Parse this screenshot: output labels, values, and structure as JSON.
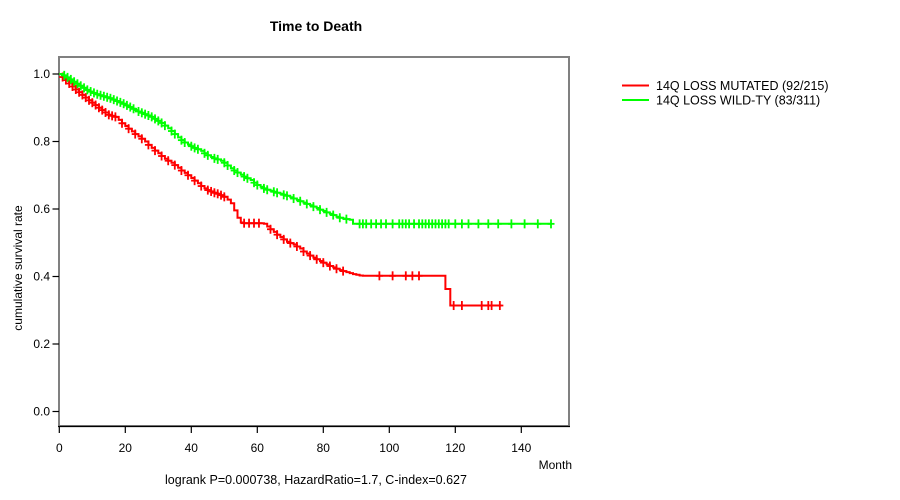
{
  "title": "Time to Death",
  "y_axis_label": "cumulative survival rate",
  "x_axis_label": "Month",
  "footer": "logrank P=0.000738, HazardRatio=1.7, C-index=0.627",
  "colors": {
    "background": "#ffffff",
    "box_border": "#808080",
    "axis": "#000000",
    "mutated": "#ff0000",
    "wildtype": "#00ff00"
  },
  "legend": {
    "items": [
      {
        "label": "14Q LOSS MUTATED (92/215)",
        "color": "#ff0000"
      },
      {
        "label": "14Q LOSS WILD-TY (83/311)",
        "color": "#00ff00"
      }
    ]
  },
  "chart_data": {
    "type": "line",
    "subtype": "kaplan-meier-step",
    "title": "Time to Death",
    "xlabel": "Month",
    "ylabel": "cumulative survival rate",
    "annotation": "logrank P=0.000738, HazardRatio=1.7, C-index=0.627",
    "logrank_p": 0.000738,
    "hazard_ratio": 1.7,
    "c_index": 0.627,
    "xlim": [
      0,
      155
    ],
    "ylim": [
      0.0,
      1.0
    ],
    "x_ticks": [
      0,
      20,
      40,
      60,
      80,
      100,
      120,
      140
    ],
    "y_ticks": [
      0.0,
      0.2,
      0.4,
      0.6,
      0.8,
      1.0
    ],
    "grid": false,
    "legend_position": "outside-top-right",
    "series": [
      {
        "name": "14Q LOSS MUTATED (92/215)",
        "events": 92,
        "n": 215,
        "color": "#ff0000",
        "points": [
          [
            0,
            1
          ],
          [
            1,
            0.991
          ],
          [
            2,
            0.982
          ],
          [
            3,
            0.972
          ],
          [
            4,
            0.963
          ],
          [
            5,
            0.954
          ],
          [
            6,
            0.946
          ],
          [
            7,
            0.938
          ],
          [
            8,
            0.93
          ],
          [
            9,
            0.922
          ],
          [
            10,
            0.915
          ],
          [
            11,
            0.908
          ],
          [
            12,
            0.9
          ],
          [
            13,
            0.893
          ],
          [
            14,
            0.886
          ],
          [
            15,
            0.879
          ],
          [
            16,
            0.876
          ],
          [
            17,
            0.873
          ],
          [
            18,
            0.864
          ],
          [
            19,
            0.854
          ],
          [
            20,
            0.846
          ],
          [
            21,
            0.838
          ],
          [
            22,
            0.83
          ],
          [
            23,
            0.822
          ],
          [
            24,
            0.815
          ],
          [
            25,
            0.808
          ],
          [
            26,
            0.8
          ],
          [
            27,
            0.79
          ],
          [
            28,
            0.781
          ],
          [
            29,
            0.773
          ],
          [
            30,
            0.765
          ],
          [
            31,
            0.757
          ],
          [
            32,
            0.749
          ],
          [
            33,
            0.743
          ],
          [
            34,
            0.737
          ],
          [
            35,
            0.73
          ],
          [
            36,
            0.722
          ],
          [
            37,
            0.714
          ],
          [
            38,
            0.707
          ],
          [
            39,
            0.7
          ],
          [
            40,
            0.692
          ],
          [
            41,
            0.684
          ],
          [
            42,
            0.676
          ],
          [
            43,
            0.668
          ],
          [
            44,
            0.661
          ],
          [
            45,
            0.656
          ],
          [
            46,
            0.652
          ],
          [
            47,
            0.648
          ],
          [
            48,
            0.645
          ],
          [
            49,
            0.641
          ],
          [
            50,
            0.636
          ],
          [
            51,
            0.628
          ],
          [
            52,
            0.617
          ],
          [
            53,
            0.596
          ],
          [
            54,
            0.574
          ],
          [
            55,
            0.56
          ],
          [
            56,
            0.558
          ],
          [
            62,
            0.556
          ],
          [
            63,
            0.548
          ],
          [
            64,
            0.54
          ],
          [
            65,
            0.532
          ],
          [
            66,
            0.524
          ],
          [
            67,
            0.517
          ],
          [
            68,
            0.51
          ],
          [
            69,
            0.503
          ],
          [
            70,
            0.499
          ],
          [
            71,
            0.495
          ],
          [
            72,
            0.489
          ],
          [
            73,
            0.483
          ],
          [
            74,
            0.474
          ],
          [
            75,
            0.468
          ],
          [
            76,
            0.462
          ],
          [
            77,
            0.456
          ],
          [
            78,
            0.451
          ],
          [
            79,
            0.446
          ],
          [
            80,
            0.441
          ],
          [
            81,
            0.436
          ],
          [
            82,
            0.431
          ],
          [
            83,
            0.427
          ],
          [
            84,
            0.423
          ],
          [
            85,
            0.419
          ],
          [
            86,
            0.416
          ],
          [
            87,
            0.413
          ],
          [
            88,
            0.41
          ],
          [
            89,
            0.407
          ],
          [
            90,
            0.405
          ],
          [
            91,
            0.403
          ],
          [
            92,
            0.402
          ],
          [
            116,
            0.402
          ],
          [
            117,
            0.363
          ],
          [
            118.5,
            0.314
          ],
          [
            134,
            0.314
          ]
        ],
        "censor_marks_months": [
          1,
          2,
          3,
          4,
          5,
          6,
          7,
          8,
          9,
          10,
          11,
          12,
          13,
          14,
          15,
          16,
          17,
          19,
          21,
          23,
          25,
          27,
          29,
          31,
          33,
          35,
          37,
          39,
          41,
          43,
          45,
          46,
          47,
          48,
          49,
          50,
          56,
          57.5,
          59,
          60.5,
          64,
          66,
          68,
          70,
          72,
          74,
          76,
          78,
          80,
          82,
          84,
          86,
          97,
          101,
          105,
          107,
          109,
          119.5,
          122,
          128,
          130,
          131,
          133.5
        ]
      },
      {
        "name": "14Q LOSS WILD-TY (83/311)",
        "events": 83,
        "n": 311,
        "color": "#00ff00",
        "points": [
          [
            0,
            1
          ],
          [
            1,
            0.996
          ],
          [
            2,
            0.99
          ],
          [
            3,
            0.984
          ],
          [
            4,
            0.977
          ],
          [
            5,
            0.971
          ],
          [
            6,
            0.965
          ],
          [
            7,
            0.959
          ],
          [
            8,
            0.953
          ],
          [
            9,
            0.948
          ],
          [
            10,
            0.944
          ],
          [
            11,
            0.94
          ],
          [
            12,
            0.937
          ],
          [
            13,
            0.934
          ],
          [
            14,
            0.931
          ],
          [
            15,
            0.928
          ],
          [
            16,
            0.924
          ],
          [
            17,
            0.92
          ],
          [
            18,
            0.916
          ],
          [
            19,
            0.912
          ],
          [
            20,
            0.907
          ],
          [
            21,
            0.902
          ],
          [
            22,
            0.897
          ],
          [
            23,
            0.893
          ],
          [
            24,
            0.889
          ],
          [
            25,
            0.885
          ],
          [
            26,
            0.881
          ],
          [
            27,
            0.877
          ],
          [
            28,
            0.873
          ],
          [
            29,
            0.867
          ],
          [
            30,
            0.861
          ],
          [
            31,
            0.855
          ],
          [
            32,
            0.847
          ],
          [
            33,
            0.839
          ],
          [
            34,
            0.831
          ],
          [
            35,
            0.822
          ],
          [
            36,
            0.812
          ],
          [
            37,
            0.804
          ],
          [
            38,
            0.797
          ],
          [
            39,
            0.791
          ],
          [
            40,
            0.786
          ],
          [
            41,
            0.781
          ],
          [
            42,
            0.777
          ],
          [
            43,
            0.772
          ],
          [
            44,
            0.765
          ],
          [
            45,
            0.759
          ],
          [
            46,
            0.754
          ],
          [
            47,
            0.75
          ],
          [
            48,
            0.747
          ],
          [
            49,
            0.743
          ],
          [
            50,
            0.737
          ],
          [
            51,
            0.729
          ],
          [
            52,
            0.721
          ],
          [
            53,
            0.714
          ],
          [
            54,
            0.708
          ],
          [
            55,
            0.702
          ],
          [
            56,
            0.696
          ],
          [
            57,
            0.691
          ],
          [
            58,
            0.686
          ],
          [
            59,
            0.678
          ],
          [
            60,
            0.671
          ],
          [
            61,
            0.666
          ],
          [
            62,
            0.661
          ],
          [
            63,
            0.657
          ],
          [
            64,
            0.654
          ],
          [
            65,
            0.651
          ],
          [
            66,
            0.648
          ],
          [
            67,
            0.645
          ],
          [
            68,
            0.642
          ],
          [
            69,
            0.639
          ],
          [
            70,
            0.635
          ],
          [
            71,
            0.631
          ],
          [
            72,
            0.627
          ],
          [
            73,
            0.623
          ],
          [
            74,
            0.619
          ],
          [
            75,
            0.615
          ],
          [
            76,
            0.611
          ],
          [
            77,
            0.607
          ],
          [
            78,
            0.603
          ],
          [
            79,
            0.598
          ],
          [
            80,
            0.594
          ],
          [
            81,
            0.59
          ],
          [
            82,
            0.586
          ],
          [
            83,
            0.582
          ],
          [
            84,
            0.577
          ],
          [
            85,
            0.574
          ],
          [
            86,
            0.572
          ],
          [
            87,
            0.57
          ],
          [
            88,
            0.568
          ],
          [
            89,
            0.556
          ],
          [
            149,
            0.556
          ]
        ],
        "censor_marks_months": [
          1.5,
          2.5,
          3.5,
          4.5,
          5.5,
          6.5,
          7.5,
          8.5,
          9.5,
          10.5,
          11.5,
          12.5,
          13.5,
          14.5,
          15.5,
          16.5,
          17.5,
          18.5,
          19.5,
          20.5,
          21.5,
          22.5,
          24,
          25,
          26,
          27,
          28,
          29,
          30,
          31,
          32,
          34,
          35,
          37,
          38,
          40,
          41,
          42,
          44,
          45,
          47,
          48,
          50,
          51,
          53,
          54,
          56,
          57,
          59,
          60,
          62,
          63,
          65,
          66,
          68,
          69,
          71,
          73,
          75,
          77,
          79,
          81,
          83,
          85,
          87,
          91,
          92,
          93,
          94.5,
          96,
          97.5,
          99,
          101,
          103,
          104,
          105,
          106,
          107.5,
          109,
          110,
          111,
          112,
          113,
          114,
          115,
          116,
          117,
          118,
          120,
          122,
          124,
          127,
          130,
          133,
          137,
          141,
          145,
          149
        ]
      }
    ]
  }
}
